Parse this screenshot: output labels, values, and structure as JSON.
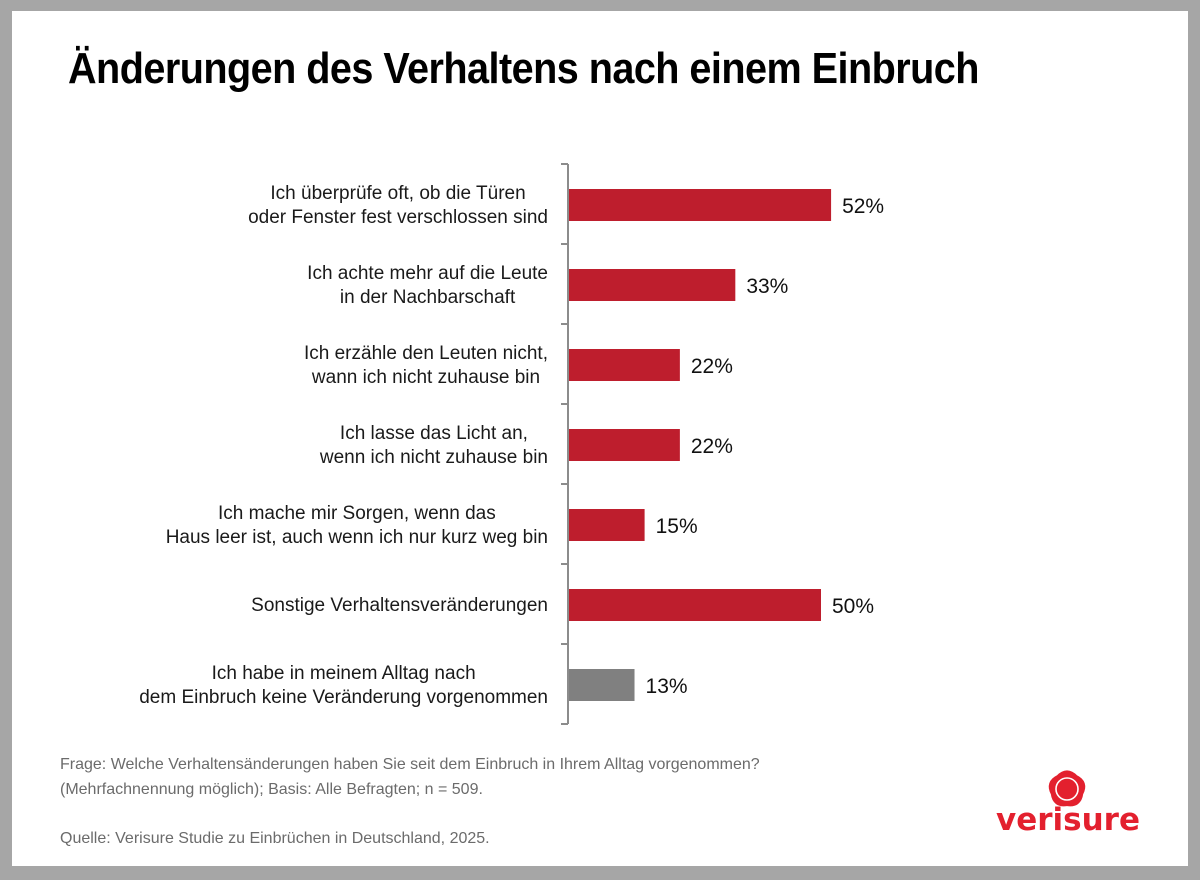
{
  "title": "Änderungen des Verhaltens nach einem Einbruch",
  "colors": {
    "primary_bar": "#be1e2d",
    "neutral_bar": "#808080",
    "axis": "#8c8c8c",
    "brand": "#e3202e"
  },
  "chart_data": {
    "type": "bar",
    "orientation": "horizontal",
    "title": "Änderungen des Verhaltens nach einem Einbruch",
    "xlabel": "",
    "ylabel": "",
    "xlim": [
      0,
      100
    ],
    "grid": false,
    "legend": "none",
    "unit": "%",
    "categories": [
      [
        "Ich überprüfe oft, ob die Türen",
        "oder Fenster fest verschlossen sind"
      ],
      [
        "Ich achte mehr auf die Leute",
        "in der Nachbarschaft"
      ],
      [
        "Ich erzähle den Leuten nicht,",
        "wann ich nicht zuhause bin"
      ],
      [
        "Ich lasse das Licht an,",
        "wenn ich nicht zuhause bin"
      ],
      [
        "Ich mache mir Sorgen, wenn das",
        "Haus leer ist, auch wenn ich nur kurz weg bin"
      ],
      [
        "Sonstige Verhaltensveränderungen"
      ],
      [
        "Ich habe in meinem Alltag nach",
        "dem Einbruch keine Veränderung vorgenommen"
      ]
    ],
    "values": [
      52,
      33,
      22,
      22,
      15,
      50,
      13
    ],
    "value_labels": [
      "52%",
      "33%",
      "22%",
      "22%",
      "15%",
      "50%",
      "13%"
    ],
    "bar_colors": [
      "primary",
      "primary",
      "primary",
      "primary",
      "primary",
      "primary",
      "neutral"
    ]
  },
  "footnote": {
    "question_line1": "Frage: Welche Verhaltensänderungen haben Sie seit dem Einbruch in Ihrem Alltag vorgenommen?",
    "question_line2": "(Mehrfachnennung möglich); Basis: Alle Befragten; n = 509.",
    "source": "Quelle: Verisure Studie zu Einbrüchen in Deutschland, 2025."
  },
  "logo": {
    "text": "verisure",
    "icon": "verisure-flower-icon"
  }
}
